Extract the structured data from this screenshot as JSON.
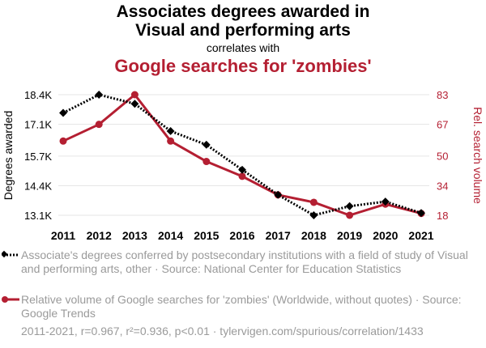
{
  "header": {
    "title_line1": "Associates degrees awarded in",
    "title_line2": "Visual and performing arts",
    "connector": "correlates with",
    "title2": "Google searches for 'zombies'"
  },
  "colors": {
    "series1": "#000000",
    "series2": "#b41f32",
    "grid": "#e6e6e6"
  },
  "chart_data": {
    "type": "line",
    "x": [
      2011,
      2012,
      2013,
      2014,
      2015,
      2016,
      2017,
      2018,
      2019,
      2020,
      2021
    ],
    "xlabels": [
      "2011",
      "2012",
      "2013",
      "2014",
      "2015",
      "2016",
      "2017",
      "2018",
      "2019",
      "2020",
      "2021"
    ],
    "y_left": {
      "label": "Degrees awarded",
      "ticks": [
        13100,
        14400,
        15700,
        17100,
        18400
      ],
      "tick_labels": [
        "13.1K",
        "14.4K",
        "15.7K",
        "17.1K",
        "18.4K"
      ],
      "range": [
        13100,
        18400
      ]
    },
    "y_right": {
      "label": "Rel. search volume",
      "ticks": [
        18,
        34,
        50,
        67,
        83
      ],
      "tick_labels": [
        "18",
        "34",
        "50",
        "67",
        "83"
      ],
      "range": [
        18,
        83
      ]
    },
    "series": [
      {
        "axis": "left",
        "style": "dotted",
        "marker": "diamond",
        "values": [
          17600,
          18400,
          18000,
          16800,
          16200,
          15100,
          14000,
          13100,
          13500,
          13700,
          13200
        ]
      },
      {
        "axis": "right",
        "style": "solid",
        "marker": "circle",
        "values": [
          58,
          67,
          83,
          58,
          47,
          39,
          29,
          25,
          18,
          24,
          19
        ]
      }
    ]
  },
  "legend": {
    "item1": "Associate's degrees conferred by postsecondary institutions with a field of study of Visual and performing arts, other · Source: National Center for Education Statistics",
    "item2": "Relative volume of Google searches for 'zombies' (Worldwide, without quotes) · Source: Google Trends"
  },
  "footer": "2011-2021, r=0.967, r²=0.936, p<0.01 · tylervigen.com/spurious/correlation/1433"
}
